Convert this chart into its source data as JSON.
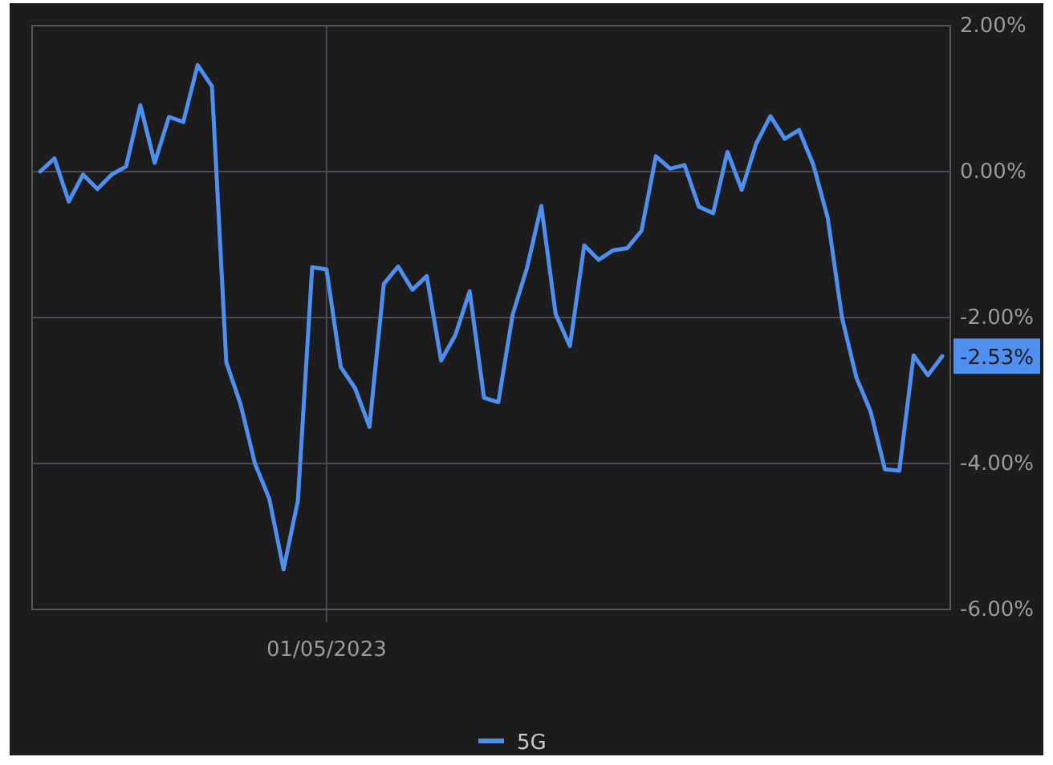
{
  "chart_data": {
    "type": "line",
    "legend": "bottom",
    "grid": true,
    "line_style": "solid",
    "marker": "none",
    "categories": [
      null,
      null,
      null,
      null,
      null,
      null,
      null,
      null,
      null,
      null,
      null,
      null,
      null,
      null,
      null,
      null,
      null,
      null,
      null,
      null,
      "01/05/2023",
      null,
      null,
      null,
      null,
      null,
      null,
      null,
      null,
      null,
      null,
      null,
      null,
      null,
      null,
      null,
      null,
      null,
      null,
      null,
      null,
      null,
      null,
      null,
      null,
      null,
      null,
      null,
      null,
      null,
      null,
      null,
      null,
      null,
      null,
      null,
      null,
      null,
      null,
      null,
      null,
      null,
      null,
      null
    ],
    "ylim": [
      -6,
      2
    ],
    "yticks": [
      {
        "value": 2,
        "label": "2.00%"
      },
      {
        "value": 0,
        "label": "0.00%"
      },
      {
        "value": -2,
        "label": "-2.00%"
      },
      {
        "value": -4,
        "label": "-4.00%"
      },
      {
        "value": -6,
        "label": "-6.00%"
      }
    ],
    "annotations": [
      "-2.53%"
    ],
    "series": [
      {
        "name": "5G",
        "color": "#4f8ff0",
        "values": [
          0.0,
          0.18,
          -0.41,
          -0.04,
          -0.24,
          -0.04,
          0.07,
          0.91,
          0.12,
          0.75,
          0.68,
          1.46,
          1.17,
          -2.61,
          -3.19,
          -4.0,
          -4.48,
          -5.45,
          -4.51,
          -1.31,
          -1.34,
          -2.68,
          -2.97,
          -3.5,
          -1.54,
          -1.3,
          -1.62,
          -1.43,
          -2.59,
          -2.24,
          -1.64,
          -3.1,
          -3.16,
          -1.96,
          -1.32,
          -0.47,
          -1.95,
          -2.39,
          -1.01,
          -1.21,
          -1.08,
          -1.05,
          -0.81,
          0.21,
          0.04,
          0.09,
          -0.48,
          -0.57,
          0.27,
          -0.25,
          0.38,
          0.76,
          0.45,
          0.57,
          0.09,
          -0.63,
          -2.0,
          -2.82,
          -3.29,
          -4.08,
          -4.1,
          -2.52,
          -2.79,
          -2.53
        ]
      }
    ]
  }
}
